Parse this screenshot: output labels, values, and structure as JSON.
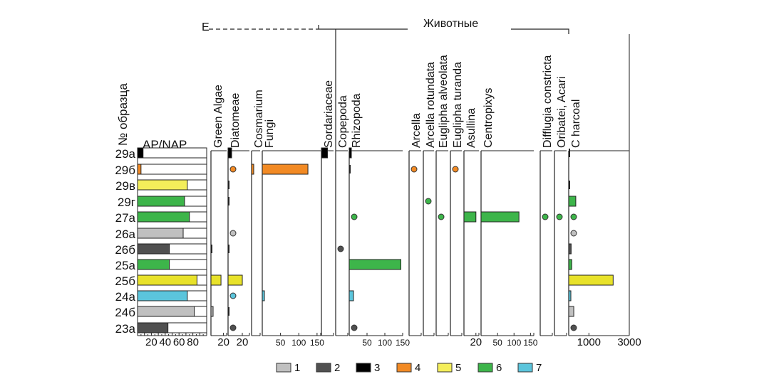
{
  "chart_data": {
    "type": "bar",
    "title": "",
    "group_headers": [
      {
        "label": "E",
        "note": "truncated header over algae/fungi columns"
      },
      {
        "label": "Животные"
      }
    ],
    "ylabel": "№ образца",
    "samples": [
      "29а",
      "29б",
      "29в",
      "29г",
      "27а",
      "26а",
      "26б",
      "25а",
      "25б",
      "24а",
      "24б",
      "23а"
    ],
    "sample_groups": [
      3,
      4,
      5,
      6,
      6,
      1,
      2,
      6,
      5,
      7,
      1,
      2
    ],
    "ap_nap": {
      "label": "AP/NAP",
      "ticks": [
        "20",
        "40",
        "60",
        "80"
      ],
      "xlim": [
        0,
        100
      ],
      "values": [
        8,
        5,
        72,
        68,
        75,
        66,
        46,
        46,
        86,
        72,
        82,
        44
      ]
    },
    "columns": [
      {
        "key": "green_algae",
        "label": "Green Algae",
        "tick_labels": [
          "20"
        ],
        "xlim": [
          0,
          25
        ],
        "values": [
          0,
          0,
          0,
          0,
          0,
          0,
          0.5,
          0,
          16,
          0,
          3,
          0
        ],
        "marks": [
          "none",
          "none",
          "none",
          "none",
          "none",
          "none",
          "line",
          "none",
          "bar",
          "none",
          "bar",
          "none"
        ]
      },
      {
        "key": "diatomeae",
        "label": "Diatomeae",
        "tick_labels": [
          "20"
        ],
        "xlim": [
          0,
          30
        ],
        "values": [
          5,
          5,
          0.5,
          0.5,
          0,
          5,
          0.5,
          0,
          20,
          5,
          0.5,
          5
        ],
        "marks": [
          "bar",
          "dot",
          "line",
          "line",
          "none",
          "dot",
          "line",
          "none",
          "bar",
          "dot",
          "line",
          "dot"
        ]
      },
      {
        "key": "cosmarium",
        "label": "Cosmarium",
        "tick_labels": [],
        "xlim": [
          0,
          10
        ],
        "values": [
          0,
          2,
          0,
          0,
          0,
          0,
          0,
          0,
          0,
          0,
          0,
          0
        ],
        "marks": [
          "none",
          "bar",
          "none",
          "none",
          "none",
          "none",
          "none",
          "none",
          "none",
          "none",
          "none",
          "none"
        ]
      },
      {
        "key": "fungi",
        "label": "Fungi",
        "tick_labels": [
          "50",
          "100",
          "150"
        ],
        "xlim": [
          0,
          160
        ],
        "values": [
          0,
          125,
          0,
          0,
          0,
          0,
          0,
          0,
          0,
          5,
          0,
          0
        ],
        "marks": [
          "none",
          "bar",
          "none",
          "none",
          "none",
          "none",
          "none",
          "none",
          "none",
          "bar",
          "none",
          "none"
        ]
      },
      {
        "key": "sordariaceae",
        "label": "Sordariaceae",
        "tick_labels": [],
        "xlim": [
          0,
          20
        ],
        "values": [
          10,
          0,
          0,
          0,
          0,
          0,
          0,
          0,
          0,
          0,
          0,
          0
        ],
        "marks": [
          "bar",
          "none",
          "none",
          "none",
          "none",
          "none",
          "none",
          "none",
          "none",
          "none",
          "none",
          "none"
        ]
      },
      {
        "key": "copepoda",
        "label": "Copepoda",
        "tick_labels": [],
        "xlim": [
          0,
          20
        ],
        "values": [
          0,
          0,
          0,
          0,
          0,
          0,
          5,
          0,
          0,
          0,
          0,
          0
        ],
        "marks": [
          "none",
          "none",
          "none",
          "none",
          "none",
          "none",
          "dot",
          "none",
          "none",
          "none",
          "none",
          "none"
        ]
      },
      {
        "key": "rhizopoda",
        "label": "Rhizopoda",
        "tick_labels": [
          "50",
          "100",
          "150"
        ],
        "xlim": [
          0,
          150
        ],
        "values": [
          3,
          2,
          0,
          0,
          10,
          0,
          0,
          145,
          0,
          12,
          0,
          10
        ],
        "marks": [
          "bar",
          "line",
          "none",
          "none",
          "dot",
          "none",
          "none",
          "bar",
          "none",
          "bar",
          "none",
          "dot"
        ]
      },
      {
        "key": "arcella",
        "label": "Arcella",
        "tick_labels": [],
        "xlim": [
          0,
          20
        ],
        "values": [
          0,
          5,
          0,
          0,
          0,
          0,
          0,
          0,
          0,
          0,
          0,
          0
        ],
        "marks": [
          "none",
          "dot",
          "none",
          "none",
          "none",
          "none",
          "none",
          "none",
          "none",
          "none",
          "none",
          "none"
        ]
      },
      {
        "key": "arcella_rotundata",
        "label": "Arcella rotundata",
        "tick_labels": [],
        "xlim": [
          0,
          20
        ],
        "values": [
          0,
          0,
          0,
          5,
          0,
          0,
          0,
          0,
          0,
          0,
          0,
          0
        ],
        "marks": [
          "none",
          "none",
          "none",
          "dot",
          "none",
          "none",
          "none",
          "none",
          "none",
          "none",
          "none",
          "none"
        ]
      },
      {
        "key": "euglipha_alveolata",
        "label": "Euglipha alveolata",
        "tick_labels": [],
        "xlim": [
          0,
          20
        ],
        "values": [
          0,
          0,
          0,
          0,
          5,
          0,
          0,
          0,
          0,
          0,
          0,
          0
        ],
        "marks": [
          "none",
          "none",
          "none",
          "none",
          "dot",
          "none",
          "none",
          "none",
          "none",
          "none",
          "none",
          "none"
        ]
      },
      {
        "key": "euglipha_turanda",
        "label": "Euglipha turanda",
        "tick_labels": [],
        "xlim": [
          0,
          20
        ],
        "values": [
          0,
          5,
          0,
          0,
          0,
          0,
          0,
          0,
          0,
          0,
          0,
          0
        ],
        "marks": [
          "none",
          "dot",
          "none",
          "none",
          "none",
          "none",
          "none",
          "none",
          "none",
          "none",
          "none",
          "none"
        ]
      },
      {
        "key": "asullina",
        "label": "Asullina",
        "tick_labels": [
          "20"
        ],
        "xlim": [
          0,
          25
        ],
        "values": [
          0,
          0,
          0,
          0,
          20,
          0,
          0,
          0,
          0,
          0,
          0,
          0
        ],
        "marks": [
          "none",
          "none",
          "none",
          "none",
          "bar",
          "none",
          "none",
          "none",
          "none",
          "none",
          "none",
          "none"
        ]
      },
      {
        "key": "centropixys",
        "label": "Centropixys",
        "tick_labels": [
          "50",
          "100",
          "150"
        ],
        "xlim": [
          0,
          160
        ],
        "values": [
          0,
          0,
          0,
          0,
          115,
          0,
          0,
          0,
          0,
          0,
          0,
          0
        ],
        "marks": [
          "none",
          "none",
          "none",
          "none",
          "bar",
          "none",
          "none",
          "none",
          "none",
          "none",
          "none",
          "none"
        ]
      },
      {
        "key": "difflugia_constricta",
        "label": "Difflugia constricta",
        "tick_labels": [],
        "xlim": [
          0,
          20
        ],
        "values": [
          0,
          0,
          0,
          0,
          5,
          0,
          0,
          0,
          0,
          0,
          0,
          0
        ],
        "marks": [
          "none",
          "none",
          "none",
          "none",
          "dot",
          "none",
          "none",
          "none",
          "none",
          "none",
          "none",
          "none"
        ]
      },
      {
        "key": "oribatei_acari",
        "label": "Oribatei, Acari",
        "tick_labels": [],
        "xlim": [
          0,
          20
        ],
        "values": [
          0,
          0,
          0,
          0,
          5,
          0,
          0,
          0,
          0,
          0,
          0,
          0
        ],
        "marks": [
          "none",
          "none",
          "none",
          "none",
          "dot",
          "none",
          "none",
          "none",
          "none",
          "none",
          "none",
          "none"
        ]
      },
      {
        "key": "charcoal",
        "label": "C harcoal",
        "tick_labels": [
          "1000",
          "3000"
        ],
        "xlim": [
          0,
          3000
        ],
        "values": [
          30,
          0,
          30,
          350,
          150,
          150,
          120,
          150,
          2200,
          60,
          250,
          200
        ],
        "marks": [
          "line",
          "none",
          "line",
          "bar",
          "dot",
          "dot",
          "bar",
          "bar",
          "bar",
          "bar",
          "bar",
          "dot"
        ]
      }
    ],
    "legend": {
      "placement": "bottom",
      "items": [
        {
          "label": "1",
          "color": "#c0c0c0"
        },
        {
          "label": "2",
          "color": "#505050"
        },
        {
          "label": "3",
          "color": "#000000"
        },
        {
          "label": "4",
          "color": "#f28a24"
        },
        {
          "label": "5",
          "color": "#f4ee5a"
        },
        {
          "label": "6",
          "color": "#3db54a"
        },
        {
          "label": "7",
          "color": "#5bc5dc"
        }
      ]
    },
    "group_colors": {
      "1": "#c0c0c0",
      "2": "#505050",
      "3": "#000000",
      "4": "#f28a24",
      "5": "#f4ee5a",
      "6": "#3db54a",
      "7": "#5bc5dc"
    },
    "bar_fill_overrides": {
      "25б": "#e8e22a"
    }
  }
}
